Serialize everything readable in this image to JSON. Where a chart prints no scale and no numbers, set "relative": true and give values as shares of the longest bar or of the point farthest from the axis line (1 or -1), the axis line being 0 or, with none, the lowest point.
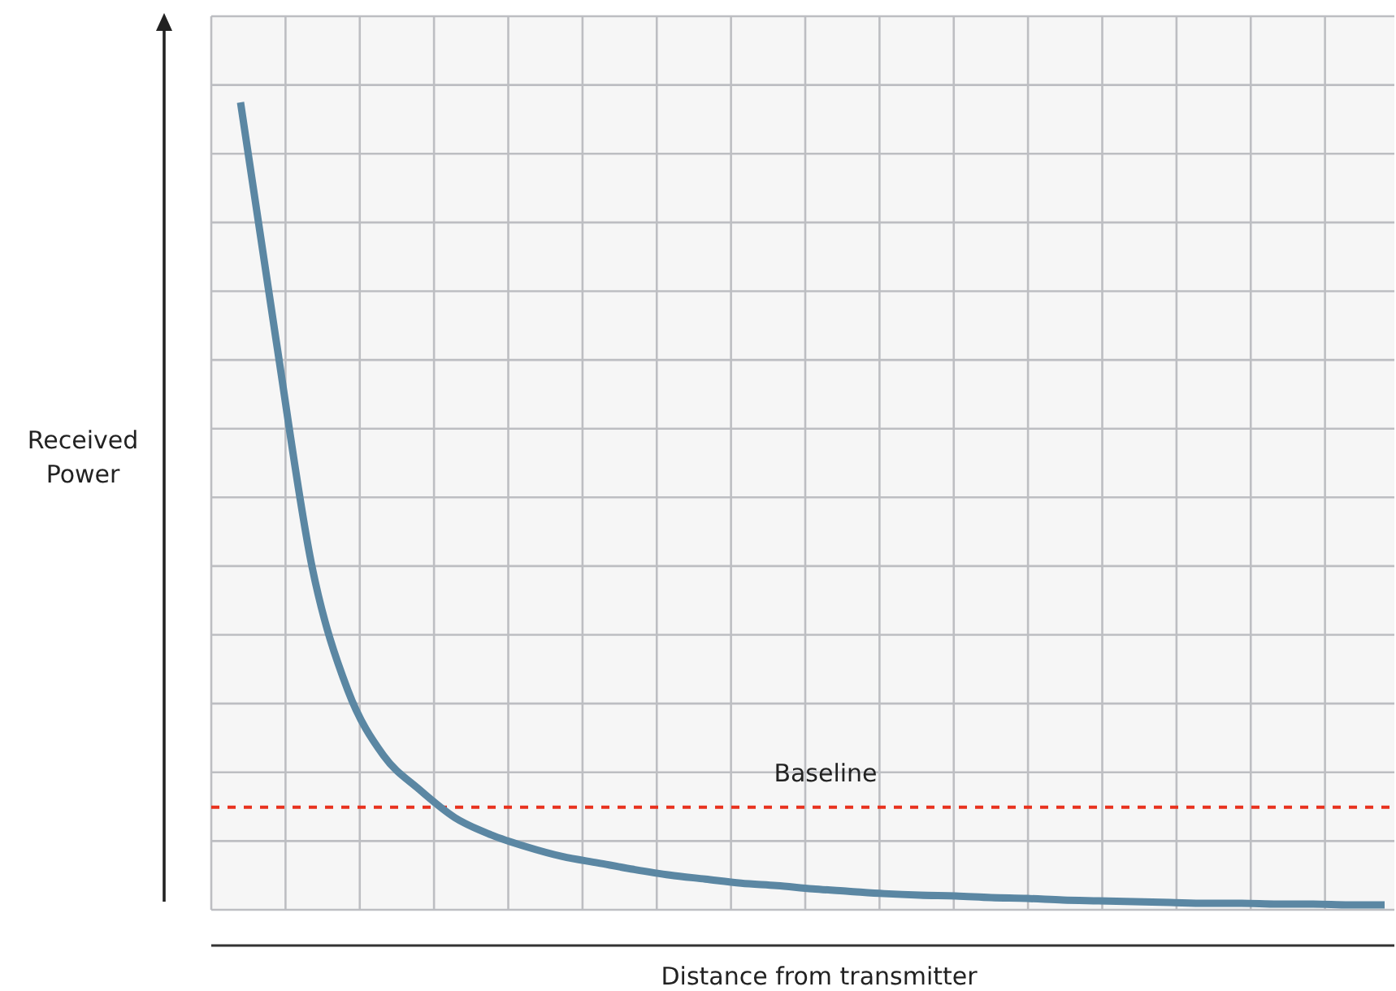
{
  "chart_data": {
    "type": "line",
    "relative": true,
    "xlabel": "Distance from transmitter",
    "ylabel": "Received Power",
    "grid": true,
    "marker": "none",
    "line_style": "solid",
    "categories": [
      null,
      null,
      null,
      null,
      null,
      null,
      null,
      null,
      null,
      null,
      null,
      null,
      null,
      null,
      null,
      null,
      null,
      null,
      null,
      null,
      null,
      null,
      null,
      null,
      null,
      null,
      null,
      null,
      null,
      null,
      null,
      null,
      null
    ],
    "series": [
      {
        "color": "#5b87a3",
        "values": [
          1.0,
          0.704,
          0.425,
          0.272,
          0.191,
          0.149,
          0.114,
          0.093,
          0.078,
          0.066,
          0.058,
          0.05,
          0.043,
          0.038,
          0.033,
          0.03,
          0.026,
          0.023,
          0.02,
          0.018,
          0.017,
          0.015,
          0.014,
          0.012,
          0.011,
          0.01,
          0.009,
          0.008,
          0.008,
          0.007,
          0.007,
          0.006,
          0.006
        ]
      }
    ],
    "ref_lines": [
      {
        "axis": "y",
        "value": 0.127,
        "label": "Baseline",
        "color": "#e8321e",
        "line_style": "dashed"
      }
    ]
  }
}
